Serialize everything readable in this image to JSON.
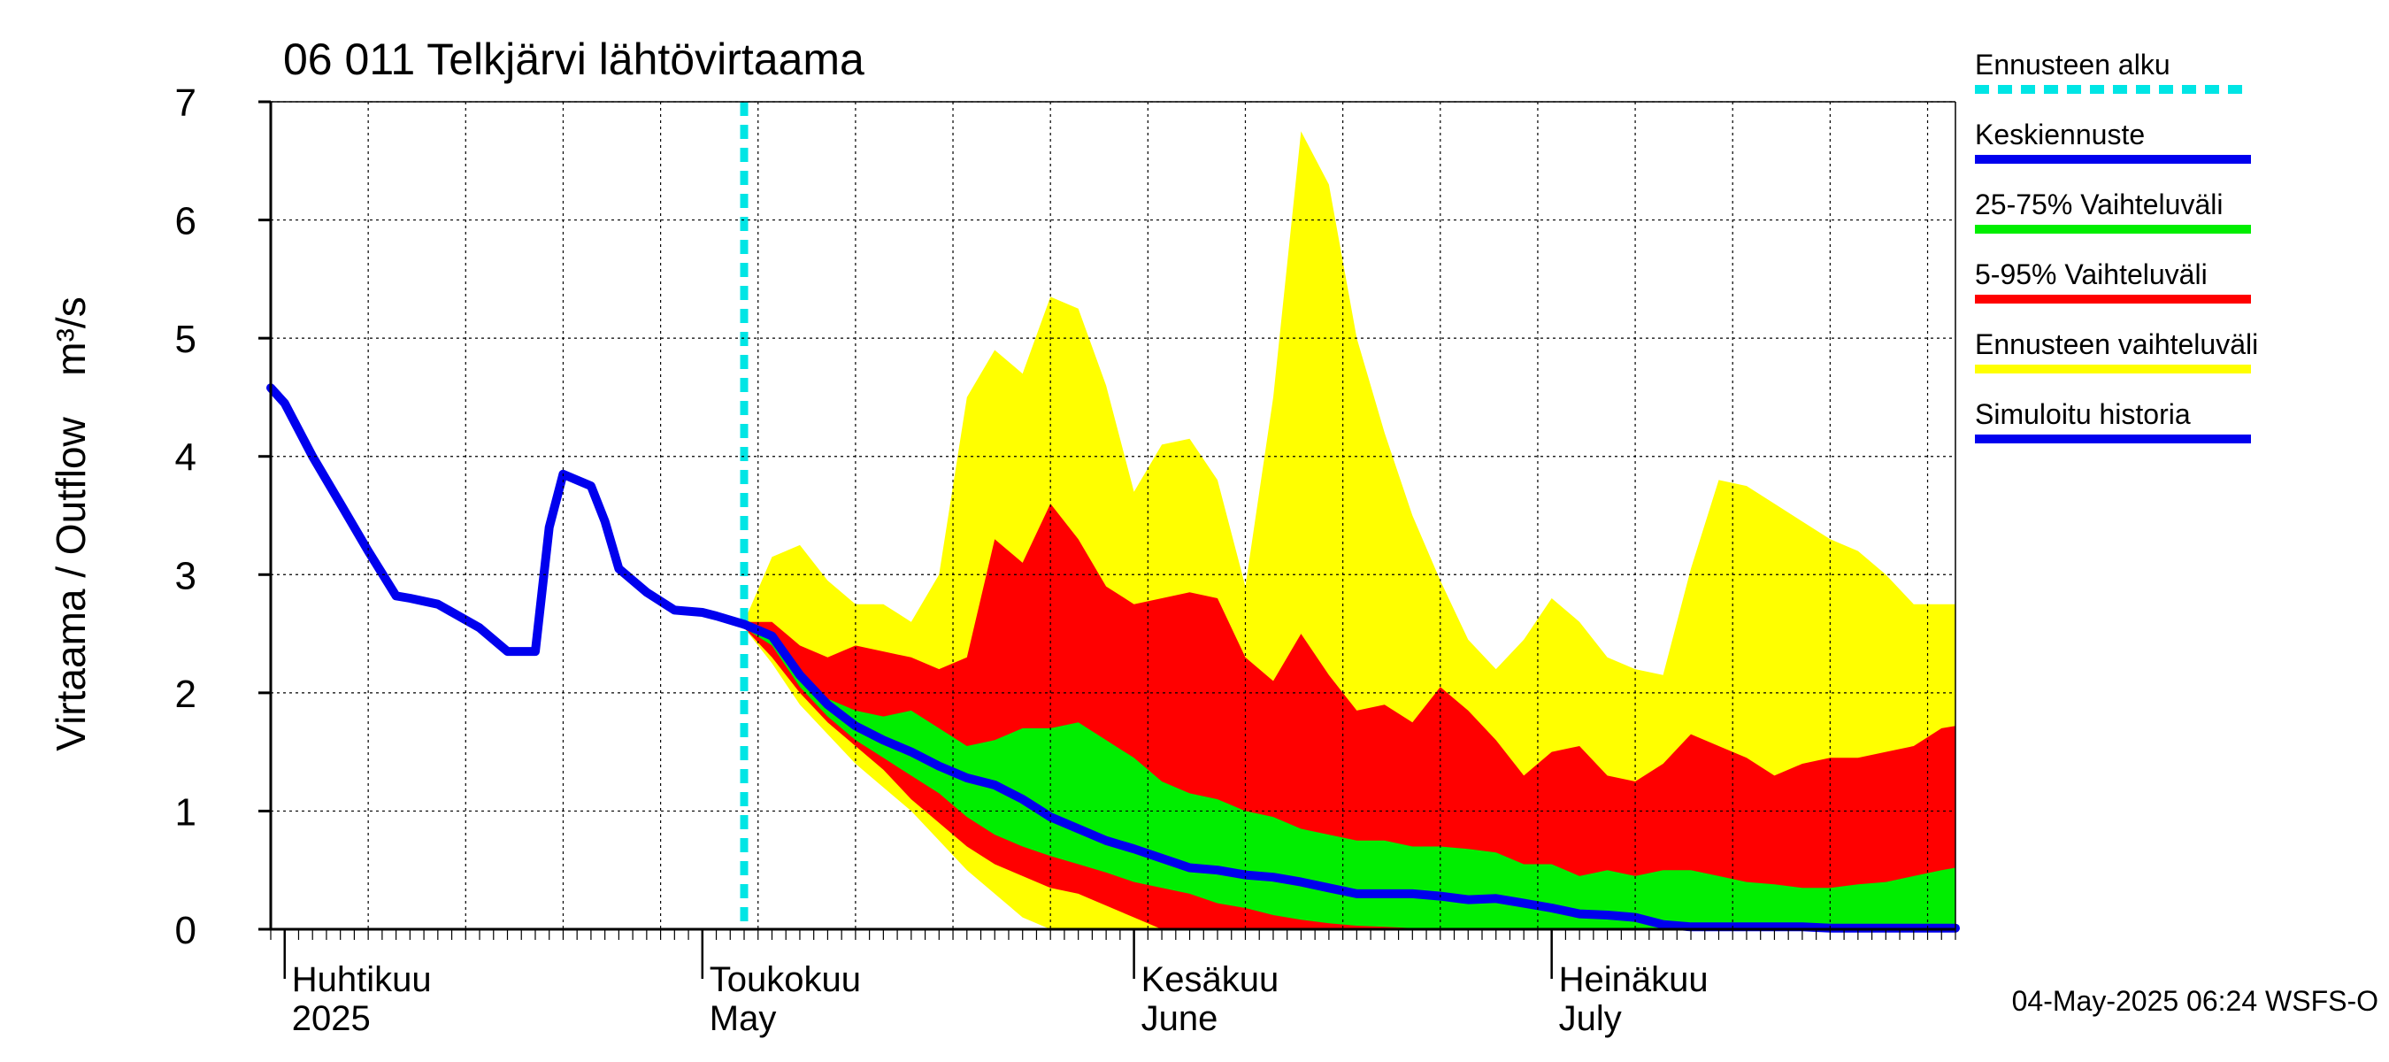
{
  "chart_data": {
    "type": "area",
    "title": "06 011 Telkjärvi lähtövirtaama",
    "ylabel": "Virtaama / Outflow",
    "yunit": "m³/s",
    "ylim": [
      0,
      7
    ],
    "yticks": [
      "0",
      "1",
      "2",
      "3",
      "4",
      "5",
      "6",
      "7"
    ],
    "xlim": [
      "2025-03-31",
      "2025-07-30"
    ],
    "grid": true,
    "legend_position": "right",
    "months": [
      {
        "fi": "Huhtikuu",
        "en": "2025",
        "date": "2025-04-01"
      },
      {
        "fi": "Toukokuu",
        "en": "May",
        "date": "2025-05-01"
      },
      {
        "fi": "Kesäkuu",
        "en": "June",
        "date": "2025-06-01"
      },
      {
        "fi": "Heinäkuu",
        "en": "July",
        "date": "2025-07-01"
      }
    ],
    "forecast_start": "2025-05-04",
    "legend": [
      {
        "label": "Ennusteen alku",
        "color": "#00e5e5",
        "style": "dashed"
      },
      {
        "label": "Keskiennuste",
        "color": "#0000ee",
        "style": "solid"
      },
      {
        "label": "25-75% Vaihteluväli",
        "color": "#00ee00",
        "style": "solid"
      },
      {
        "label": "5-95% Vaihteluväli",
        "color": "#ff0000",
        "style": "solid"
      },
      {
        "label": "Ennusteen vaihteluväli",
        "color": "#ffff00",
        "style": "solid"
      },
      {
        "label": "Simuloitu historia",
        "color": "#0000ee",
        "style": "solid"
      }
    ],
    "colors": {
      "range_full": "#ffff00",
      "range_5_95": "#ff0000",
      "range_25_75": "#00ee00",
      "median": "#0000ee",
      "history": "#0000ee",
      "forecast_start": "#00e5e5"
    },
    "history": {
      "name": "Simuloitu historia",
      "x": [
        "2025-03-31",
        "2025-04-01",
        "2025-04-03",
        "2025-04-05",
        "2025-04-07",
        "2025-04-09",
        "2025-04-10",
        "2025-04-12",
        "2025-04-15",
        "2025-04-17",
        "2025-04-19",
        "2025-04-20",
        "2025-04-21",
        "2025-04-23",
        "2025-04-24",
        "2025-04-25",
        "2025-04-27",
        "2025-04-29",
        "2025-05-01",
        "2025-05-02",
        "2025-05-04"
      ],
      "y": [
        4.58,
        4.45,
        4.0,
        3.6,
        3.2,
        2.82,
        2.8,
        2.75,
        2.55,
        2.35,
        2.35,
        3.4,
        3.85,
        3.75,
        3.45,
        3.05,
        2.85,
        2.7,
        2.68,
        2.65,
        2.58
      ]
    },
    "x": [
      "2025-05-04",
      "2025-05-06",
      "2025-05-08",
      "2025-05-10",
      "2025-05-12",
      "2025-05-14",
      "2025-05-16",
      "2025-05-18",
      "2025-05-20",
      "2025-05-22",
      "2025-05-24",
      "2025-05-26",
      "2025-05-28",
      "2025-05-30",
      "2025-06-01",
      "2025-06-03",
      "2025-06-05",
      "2025-06-07",
      "2025-06-09",
      "2025-06-11",
      "2025-06-13",
      "2025-06-15",
      "2025-06-17",
      "2025-06-19",
      "2025-06-21",
      "2025-06-23",
      "2025-06-25",
      "2025-06-27",
      "2025-06-29",
      "2025-07-01",
      "2025-07-03",
      "2025-07-05",
      "2025-07-07",
      "2025-07-09",
      "2025-07-11",
      "2025-07-13",
      "2025-07-15",
      "2025-07-17",
      "2025-07-19",
      "2025-07-21",
      "2025-07-23",
      "2025-07-25",
      "2025-07-27",
      "2025-07-29",
      "2025-07-30"
    ],
    "series": [
      {
        "name": "Ennusteen vaihteluväli",
        "upper": [
          2.6,
          3.15,
          3.25,
          2.95,
          2.75,
          2.75,
          2.6,
          3.0,
          4.5,
          4.9,
          4.7,
          5.35,
          5.25,
          4.6,
          3.7,
          4.1,
          4.15,
          3.8,
          2.9,
          4.5,
          6.75,
          6.3,
          5.0,
          4.2,
          3.5,
          2.95,
          2.45,
          2.2,
          2.45,
          2.8,
          2.6,
          2.3,
          2.2,
          2.15,
          3.05,
          3.8,
          3.75,
          3.6,
          3.45,
          3.3,
          3.2,
          3.0,
          2.75,
          2.75,
          2.75
        ],
        "lower": [
          2.55,
          2.25,
          1.9,
          1.65,
          1.4,
          1.2,
          1.0,
          0.75,
          0.5,
          0.3,
          0.1,
          0.0,
          0.0,
          0.0,
          0.0,
          0.0,
          0.0,
          0.0,
          0.0,
          0.0,
          0.0,
          0.0,
          0.0,
          0.0,
          0.0,
          0.0,
          0.0,
          0.0,
          0.0,
          0.0,
          0.0,
          0.0,
          0.0,
          0.0,
          0.0,
          0.0,
          0.0,
          0.0,
          0.0,
          0.0,
          0.0,
          0.0,
          0.0,
          0.0,
          0.0
        ]
      },
      {
        "name": "5-95% Vaihteluväli",
        "upper": [
          2.6,
          2.6,
          2.4,
          2.3,
          2.4,
          2.35,
          2.3,
          2.2,
          2.3,
          3.3,
          3.1,
          3.6,
          3.3,
          2.9,
          2.75,
          2.8,
          2.85,
          2.8,
          2.3,
          2.1,
          2.5,
          2.15,
          1.85,
          1.9,
          1.75,
          2.05,
          1.85,
          1.6,
          1.3,
          1.5,
          1.55,
          1.3,
          1.25,
          1.4,
          1.65,
          1.55,
          1.45,
          1.3,
          1.4,
          1.45,
          1.45,
          1.5,
          1.55,
          1.7,
          1.72
        ],
        "lower": [
          2.55,
          2.3,
          2.0,
          1.75,
          1.55,
          1.35,
          1.1,
          0.9,
          0.7,
          0.55,
          0.45,
          0.35,
          0.3,
          0.2,
          0.1,
          0.0,
          0.0,
          0.0,
          0.0,
          0.0,
          0.0,
          0.0,
          0.0,
          0.0,
          0.0,
          0.0,
          0.0,
          0.0,
          0.0,
          0.0,
          0.0,
          0.0,
          0.0,
          0.0,
          0.0,
          0.0,
          0.0,
          0.0,
          0.0,
          0.0,
          0.0,
          0.0,
          0.0,
          0.0,
          0.0
        ]
      },
      {
        "name": "25-75% Vaihteluväli",
        "upper": [
          2.6,
          2.5,
          2.2,
          1.95,
          1.85,
          1.8,
          1.85,
          1.7,
          1.55,
          1.6,
          1.7,
          1.7,
          1.75,
          1.6,
          1.45,
          1.25,
          1.15,
          1.1,
          1.0,
          0.95,
          0.85,
          0.8,
          0.75,
          0.75,
          0.7,
          0.7,
          0.68,
          0.65,
          0.55,
          0.55,
          0.45,
          0.5,
          0.45,
          0.5,
          0.5,
          0.45,
          0.4,
          0.38,
          0.35,
          0.35,
          0.38,
          0.4,
          0.45,
          0.5,
          0.52
        ],
        "lower": [
          2.55,
          2.4,
          2.05,
          1.8,
          1.6,
          1.45,
          1.3,
          1.15,
          0.95,
          0.8,
          0.7,
          0.62,
          0.55,
          0.48,
          0.4,
          0.35,
          0.3,
          0.22,
          0.18,
          0.12,
          0.08,
          0.05,
          0.03,
          0.02,
          0.01,
          0.0,
          0.0,
          0.0,
          0.0,
          0.0,
          0.0,
          0.0,
          0.0,
          0.0,
          0.0,
          0.0,
          0.0,
          0.0,
          0.0,
          0.0,
          0.0,
          0.0,
          0.0,
          0.0,
          0.0
        ]
      },
      {
        "name": "Keskiennuste",
        "values": [
          2.58,
          2.48,
          2.15,
          1.9,
          1.72,
          1.6,
          1.5,
          1.38,
          1.28,
          1.22,
          1.1,
          0.95,
          0.85,
          0.75,
          0.68,
          0.6,
          0.52,
          0.5,
          0.46,
          0.44,
          0.4,
          0.35,
          0.3,
          0.3,
          0.3,
          0.28,
          0.25,
          0.26,
          0.22,
          0.18,
          0.13,
          0.12,
          0.1,
          0.04,
          0.02,
          0.02,
          0.02,
          0.02,
          0.02,
          0.01,
          0.01,
          0.01,
          0.01,
          0.01,
          0.01
        ]
      }
    ]
  },
  "footer": {
    "timestamp": "04-May-2025 06:24 WSFS-O"
  }
}
